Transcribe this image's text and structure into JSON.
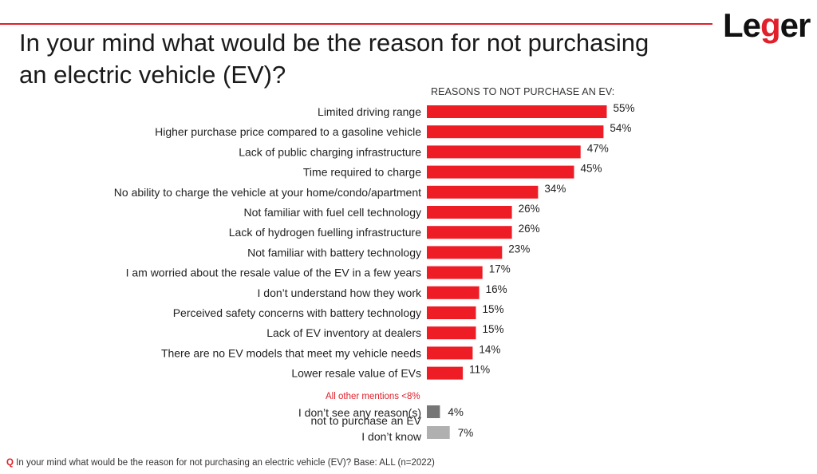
{
  "header": {
    "title_line1": "In your mind what would be the reason for not purchasing",
    "title_line2": "an electric vehicle (EV)?",
    "logo_prefix": "Le",
    "logo_g": "g",
    "logo_suffix": "er",
    "colors": {
      "accent": "#e0202a"
    }
  },
  "chart_data": {
    "type": "bar",
    "orientation": "horizontal",
    "title": "REASONS TO NOT PURCHASE AN EV:",
    "value_unit": "%",
    "categories": [
      "Limited driving range",
      "Higher purchase price compared to a gasoline vehicle",
      "Lack of public charging infrastructure",
      "Time required to charge",
      "No ability to charge the vehicle at your home/condo/apartment",
      "Not familiar with fuel cell technology",
      "Lack of hydrogen fuelling infrastructure",
      "Not familiar with battery technology",
      "I am worried about the resale value of the EV in a few years",
      "I don’t understand how they work",
      "Perceived safety concerns with battery technology",
      "Lack of EV inventory at dealers",
      "There are no EV models that meet my vehicle needs",
      "Lower resale value of EVs"
    ],
    "values": [
      55,
      54,
      47,
      45,
      34,
      26,
      26,
      23,
      17,
      16,
      15,
      15,
      14,
      11
    ],
    "bar_color": "#ee1c25",
    "note": "All other mentions <8%",
    "extra_categories": [
      {
        "label": "I don’t see any reason(s)",
        "label_line2": "not to purchase an EV",
        "value": 4,
        "color": "#767676"
      },
      {
        "label": "I don’t know",
        "value": 7,
        "color": "#b0b0b0"
      }
    ]
  },
  "footer": {
    "q_marker": "Q",
    "text": "In your mind what would be the reason for not purchasing an electric vehicle (EV)? Base: ALL (n=2022)"
  }
}
